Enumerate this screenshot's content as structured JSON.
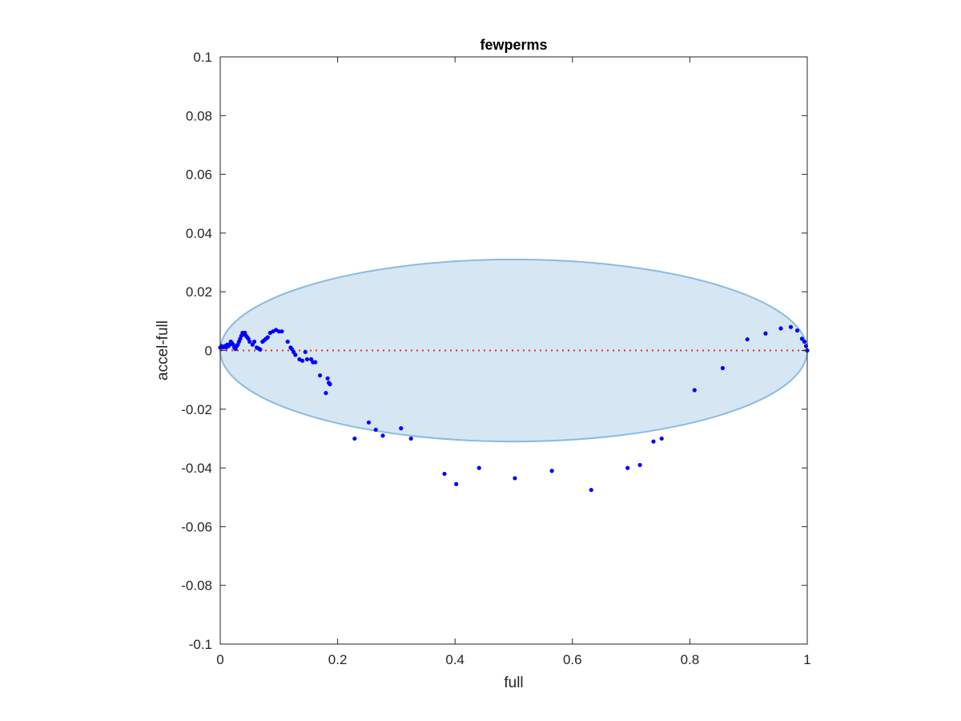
{
  "chart_data": {
    "type": "scatter",
    "title": "fewperms",
    "xlabel": "full",
    "ylabel": "accel-full",
    "xlim": [
      0,
      1
    ],
    "ylim": [
      -0.1,
      0.1
    ],
    "xticks": [
      0,
      0.2,
      0.4,
      0.6,
      0.8,
      1
    ],
    "xtick_labels": [
      "0",
      "0.2",
      "0.4",
      "0.6",
      "0.8",
      "1"
    ],
    "yticks": [
      -0.1,
      -0.08,
      -0.06,
      -0.04,
      -0.02,
      0,
      0.02,
      0.04,
      0.06,
      0.08,
      0.1
    ],
    "ytick_labels": [
      "-0.1",
      "-0.08",
      "-0.06",
      "-0.04",
      "-0.02",
      "0",
      "0.02",
      "0.04",
      "0.06",
      "0.08",
      "0.1"
    ],
    "grid": false,
    "ellipse": {
      "cx": 0.5,
      "cy": 0,
      "rx": 0.5,
      "ry": 0.031,
      "fill": "#d6e6f3",
      "stroke": "#8bbbe0"
    },
    "reference_line": {
      "y": 0,
      "color": "#ff2020",
      "style": "dotted"
    },
    "marker_color": "#0000ff",
    "points": [
      [
        0.0,
        0.001
      ],
      [
        0.002,
        0.0015
      ],
      [
        0.004,
        0.001
      ],
      [
        0.006,
        0.0012
      ],
      [
        0.008,
        0.0015
      ],
      [
        0.01,
        0.001
      ],
      [
        0.012,
        0.002
      ],
      [
        0.014,
        0.0015
      ],
      [
        0.016,
        0.002
      ],
      [
        0.018,
        0.003
      ],
      [
        0.02,
        0.0025
      ],
      [
        0.022,
        0.002
      ],
      [
        0.024,
        0.001
      ],
      [
        0.026,
        0.0005
      ],
      [
        0.028,
        0.0015
      ],
      [
        0.03,
        0.002
      ],
      [
        0.032,
        0.003
      ],
      [
        0.034,
        0.004
      ],
      [
        0.036,
        0.005
      ],
      [
        0.038,
        0.006
      ],
      [
        0.04,
        0.0055
      ],
      [
        0.042,
        0.006
      ],
      [
        0.044,
        0.005
      ],
      [
        0.046,
        0.0045
      ],
      [
        0.048,
        0.004
      ],
      [
        0.05,
        0.003
      ],
      [
        0.055,
        0.002
      ],
      [
        0.058,
        0.003
      ],
      [
        0.062,
        0.001
      ],
      [
        0.064,
        0.0008
      ],
      [
        0.066,
        0.0006
      ],
      [
        0.068,
        0.0003
      ],
      [
        0.072,
        0.003
      ],
      [
        0.075,
        0.0035
      ],
      [
        0.078,
        0.004
      ],
      [
        0.081,
        0.0045
      ],
      [
        0.085,
        0.006
      ],
      [
        0.09,
        0.0065
      ],
      [
        0.095,
        0.007
      ],
      [
        0.1,
        0.0065
      ],
      [
        0.105,
        0.0065
      ],
      [
        0.115,
        0.003
      ],
      [
        0.12,
        0.001
      ],
      [
        0.122,
        0.0005
      ],
      [
        0.125,
        -0.0005
      ],
      [
        0.128,
        -0.0015
      ],
      [
        0.135,
        -0.003
      ],
      [
        0.14,
        -0.0035
      ],
      [
        0.145,
        -0.0005
      ],
      [
        0.148,
        -0.003
      ],
      [
        0.155,
        -0.003
      ],
      [
        0.158,
        -0.004
      ],
      [
        0.162,
        -0.004
      ],
      [
        0.17,
        -0.0085
      ],
      [
        0.18,
        -0.0145
      ],
      [
        0.183,
        -0.0095
      ],
      [
        0.185,
        -0.011
      ],
      [
        0.187,
        -0.0115
      ],
      [
        0.229,
        -0.03
      ],
      [
        0.253,
        -0.0245
      ],
      [
        0.265,
        -0.027
      ],
      [
        0.277,
        -0.029
      ],
      [
        0.308,
        -0.0265
      ],
      [
        0.325,
        -0.03
      ],
      [
        0.382,
        -0.042
      ],
      [
        0.402,
        -0.0455
      ],
      [
        0.441,
        -0.04
      ],
      [
        0.502,
        -0.0435
      ],
      [
        0.565,
        -0.041
      ],
      [
        0.632,
        -0.0475
      ],
      [
        0.694,
        -0.04
      ],
      [
        0.715,
        -0.039
      ],
      [
        0.738,
        -0.031
      ],
      [
        0.752,
        -0.03
      ],
      [
        0.808,
        -0.0135
      ],
      [
        0.856,
        -0.006
      ],
      [
        0.898,
        0.0038
      ],
      [
        0.929,
        0.0058
      ],
      [
        0.955,
        0.0075
      ],
      [
        0.972,
        0.008
      ],
      [
        0.983,
        0.0068
      ],
      [
        0.991,
        0.004
      ],
      [
        0.995,
        0.003
      ],
      [
        0.998,
        0.0015
      ],
      [
        1.0,
        0.0
      ]
    ]
  }
}
